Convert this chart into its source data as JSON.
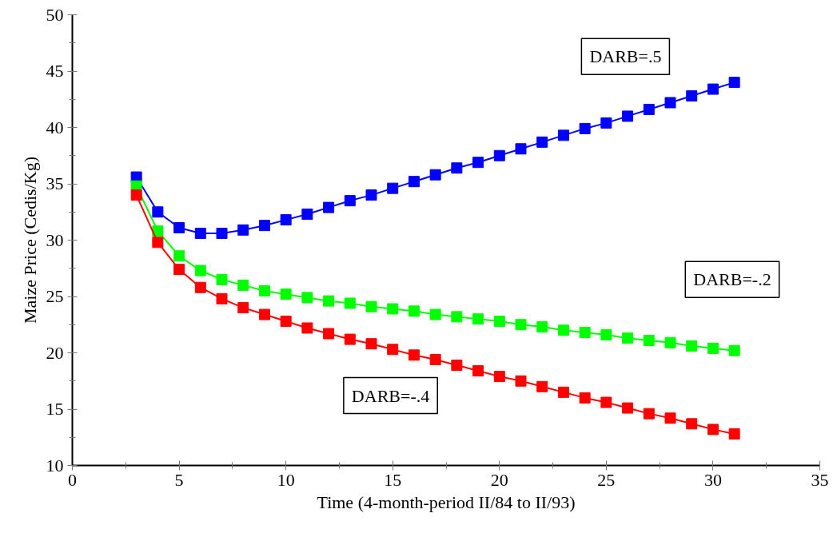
{
  "chart_data": {
    "type": "line",
    "xlabel": "Time (4-month-period II/84 to II/93)",
    "ylabel": "Maize Price (Cedis/Kg)",
    "x": [
      3,
      4,
      5,
      6,
      7,
      8,
      9,
      10,
      11,
      12,
      13,
      14,
      15,
      16,
      17,
      18,
      19,
      20,
      21,
      22,
      23,
      24,
      25,
      26,
      27,
      28,
      29,
      30,
      31
    ],
    "series": [
      {
        "name": "DARB=.5",
        "color": "#0000ff",
        "values": [
          35.6,
          32.5,
          31.1,
          30.6,
          30.6,
          30.9,
          31.3,
          31.8,
          32.3,
          32.9,
          33.5,
          34.0,
          34.6,
          35.2,
          35.8,
          36.4,
          36.9,
          37.5,
          38.1,
          38.7,
          39.3,
          39.9,
          40.4,
          41.0,
          41.6,
          42.2,
          42.8,
          43.4,
          44.0
        ]
      },
      {
        "name": "DARB=-.2",
        "color": "#00ff00",
        "values": [
          34.8,
          30.8,
          28.6,
          27.3,
          26.5,
          26.0,
          25.5,
          25.2,
          24.9,
          24.6,
          24.4,
          24.1,
          23.9,
          23.7,
          23.4,
          23.2,
          23.0,
          22.8,
          22.5,
          22.3,
          22.0,
          21.8,
          21.6,
          21.3,
          21.1,
          20.9,
          20.6,
          20.4,
          20.2
        ]
      },
      {
        "name": "DARB=-.4",
        "color": "#ff0000",
        "values": [
          34.0,
          29.8,
          27.4,
          25.8,
          24.8,
          24.0,
          23.4,
          22.8,
          22.2,
          21.7,
          21.2,
          20.8,
          20.3,
          19.8,
          19.4,
          18.9,
          18.4,
          17.9,
          17.5,
          17.0,
          16.5,
          16.0,
          15.6,
          15.1,
          14.6,
          14.2,
          13.7,
          13.2,
          12.8
        ]
      }
    ],
    "xlim": [
      0,
      35
    ],
    "ylim": [
      10,
      50
    ],
    "xticks": [
      0,
      5,
      10,
      15,
      20,
      25,
      30,
      35
    ],
    "yticks": [
      10,
      15,
      20,
      25,
      30,
      35,
      40,
      45,
      50
    ],
    "marker": "square",
    "line_style": "solid",
    "grid": false
  }
}
